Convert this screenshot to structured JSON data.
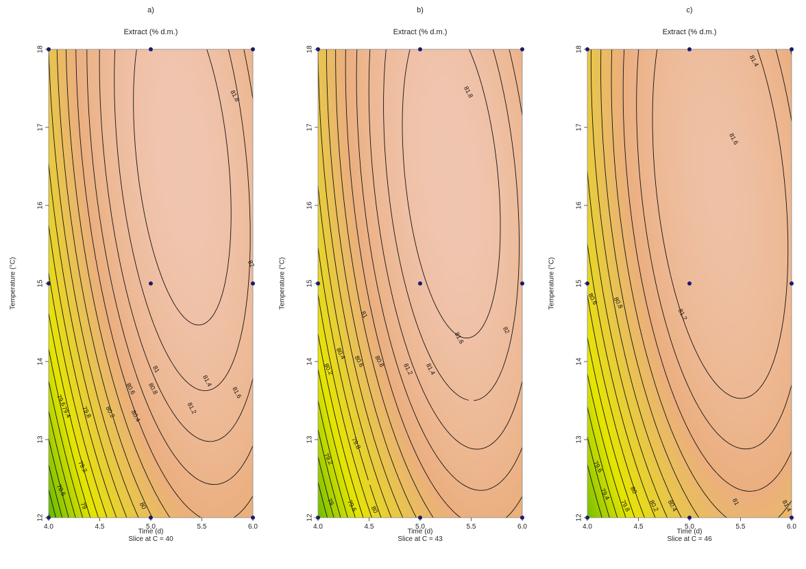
{
  "chart_data": [
    {
      "type": "heatmap",
      "panel_label": "a)",
      "title": "Extract (% d.m.)",
      "xlabel": "Time (d)",
      "ylabel": "Temperature (°C)",
      "slice_label": "Slice at C = 40",
      "xlim": [
        4.0,
        6.0
      ],
      "ylim": [
        12,
        18
      ],
      "x_ticks": [
        "4.0",
        "4.5",
        "5.0",
        "5.5",
        "6.0"
      ],
      "y_ticks": [
        "12",
        "13",
        "14",
        "15",
        "16",
        "17",
        "18"
      ],
      "surface": {
        "b0": 81.9,
        "b1": 0.9,
        "b2": 0.65,
        "b11": -1.05,
        "b22": -0.47,
        "b12": -0.47
      },
      "contour_levels": [
        78.4,
        78.6,
        78.8,
        79,
        79.2,
        79.4,
        79.6,
        79.8,
        80,
        80.2,
        80.4,
        80.6,
        80.8,
        81,
        81.2,
        81.4,
        81.6,
        81.8,
        82
      ],
      "contour_labels": [
        {
          "text": "78.6",
          "x": 4.12,
          "y": 12.35
        },
        {
          "text": "79",
          "x": 4.34,
          "y": 12.15
        },
        {
          "text": "79.2",
          "x": 4.33,
          "y": 12.65
        },
        {
          "text": "79.4",
          "x": 4.17,
          "y": 13.35
        },
        {
          "text": "79.6",
          "x": 4.12,
          "y": 13.5
        },
        {
          "text": "79.8",
          "x": 4.37,
          "y": 13.35
        },
        {
          "text": "80",
          "x": 4.92,
          "y": 12.15
        },
        {
          "text": "80.2",
          "x": 4.6,
          "y": 13.35
        },
        {
          "text": "80.4",
          "x": 4.85,
          "y": 13.3
        },
        {
          "text": "80.6",
          "x": 4.8,
          "y": 13.65
        },
        {
          "text": "80.8",
          "x": 5.02,
          "y": 13.65
        },
        {
          "text": "81",
          "x": 5.05,
          "y": 13.9
        },
        {
          "text": "81.2",
          "x": 5.4,
          "y": 13.4
        },
        {
          "text": "81.4",
          "x": 5.55,
          "y": 13.75
        },
        {
          "text": "81.6",
          "x": 5.84,
          "y": 13.6
        },
        {
          "text": "81.8",
          "x": 5.82,
          "y": 17.4
        },
        {
          "text": "82",
          "x": 5.98,
          "y": 15.25
        }
      ],
      "design_points": [
        {
          "x": 4,
          "y": 18
        },
        {
          "x": 5,
          "y": 18
        },
        {
          "x": 6,
          "y": 18
        },
        {
          "x": 4,
          "y": 15
        },
        {
          "x": 5,
          "y": 15
        },
        {
          "x": 6,
          "y": 15
        },
        {
          "x": 4,
          "y": 12
        },
        {
          "x": 5,
          "y": 12
        },
        {
          "x": 6,
          "y": 12
        }
      ]
    },
    {
      "type": "heatmap",
      "panel_label": "b)",
      "title": "Extract (% d.m.)",
      "xlabel": "Time (d)",
      "ylabel": "Temperature (°C)",
      "slice_label": "Slice at C = 43",
      "xlim": [
        4.0,
        6.0
      ],
      "ylim": [
        12,
        18
      ],
      "x_ticks": [
        "4.0",
        "4.5",
        "5.0",
        "5.5",
        "6.0"
      ],
      "y_ticks": [
        "12",
        "13",
        "14",
        "15",
        "16",
        "17",
        "18"
      ],
      "surface": {
        "b0": 81.95,
        "b1": 0.85,
        "b2": 0.6,
        "b11": -1.05,
        "b22": -0.5,
        "b12": -0.45
      },
      "contour_levels": [
        78.8,
        79,
        79.2,
        79.4,
        79.6,
        79.8,
        80,
        80.2,
        80.4,
        80.6,
        80.8,
        81,
        81.2,
        81.4,
        81.6,
        81.8,
        82
      ],
      "contour_labels": [
        {
          "text": "79",
          "x": 4.12,
          "y": 12.2
        },
        {
          "text": "79.2",
          "x": 4.1,
          "y": 12.75
        },
        {
          "text": "79.6",
          "x": 4.33,
          "y": 12.15
        },
        {
          "text": "79.8",
          "x": 4.37,
          "y": 12.95
        },
        {
          "text": "80",
          "x": 4.55,
          "y": 12.1
        },
        {
          "text": "80.2",
          "x": 4.1,
          "y": 13.9
        },
        {
          "text": "80.4",
          "x": 4.22,
          "y": 14.1
        },
        {
          "text": "80.6",
          "x": 4.4,
          "y": 14.0
        },
        {
          "text": "80.8",
          "x": 4.6,
          "y": 14.0
        },
        {
          "text": "81",
          "x": 4.45,
          "y": 14.6
        },
        {
          "text": "81.2",
          "x": 4.88,
          "y": 13.9
        },
        {
          "text": "81.4",
          "x": 5.1,
          "y": 13.9
        },
        {
          "text": "81.6",
          "x": 5.38,
          "y": 14.3
        },
        {
          "text": "81.8",
          "x": 5.47,
          "y": 17.45
        },
        {
          "text": "82",
          "x": 5.84,
          "y": 14.4
        }
      ],
      "design_points": [
        {
          "x": 4,
          "y": 18
        },
        {
          "x": 5,
          "y": 18
        },
        {
          "x": 6,
          "y": 18
        },
        {
          "x": 4,
          "y": 15
        },
        {
          "x": 5,
          "y": 15
        },
        {
          "x": 6,
          "y": 15
        },
        {
          "x": 4,
          "y": 12
        },
        {
          "x": 5,
          "y": 12
        },
        {
          "x": 6,
          "y": 12
        }
      ]
    },
    {
      "type": "heatmap",
      "panel_label": "c)",
      "title": "Extract (% d.m.)",
      "xlabel": "Time (d)",
      "ylabel": "Temperature (°C)",
      "slice_label": "Slice at C = 46",
      "xlim": [
        4.0,
        6.0
      ],
      "ylim": [
        12,
        18
      ],
      "x_ticks": [
        "4.0",
        "4.5",
        "5.0",
        "5.5",
        "6.0"
      ],
      "y_ticks": [
        "12",
        "13",
        "14",
        "15",
        "16",
        "17",
        "18"
      ],
      "surface": {
        "b0": 81.75,
        "b1": 0.75,
        "b2": 0.55,
        "b11": -0.95,
        "b22": -0.5,
        "b12": -0.42
      },
      "contour_levels": [
        79,
        79.2,
        79.4,
        79.6,
        79.8,
        80,
        80.2,
        80.4,
        80.6,
        80.8,
        81,
        81.2,
        81.4,
        81.6
      ],
      "contour_labels": [
        {
          "text": "79.4",
          "x": 4.17,
          "y": 12.3
        },
        {
          "text": "79.6",
          "x": 4.1,
          "y": 12.65
        },
        {
          "text": "79.8",
          "x": 4.37,
          "y": 12.15
        },
        {
          "text": "80",
          "x": 4.45,
          "y": 12.35
        },
        {
          "text": "80.2",
          "x": 4.65,
          "y": 12.15
        },
        {
          "text": "80.4",
          "x": 4.83,
          "y": 12.15
        },
        {
          "text": "80.6",
          "x": 4.05,
          "y": 14.8
        },
        {
          "text": "80.8",
          "x": 4.3,
          "y": 14.75
        },
        {
          "text": "81",
          "x": 5.45,
          "y": 12.2
        },
        {
          "text": "81.2",
          "x": 4.93,
          "y": 14.6
        },
        {
          "text": "81.4",
          "x": 5.95,
          "y": 12.15
        },
        {
          "text": "81.4",
          "x": 5.63,
          "y": 17.85
        },
        {
          "text": "81.6",
          "x": 5.43,
          "y": 16.85
        }
      ],
      "design_points": [
        {
          "x": 4,
          "y": 18
        },
        {
          "x": 5,
          "y": 18
        },
        {
          "x": 6,
          "y": 18
        },
        {
          "x": 4,
          "y": 15
        },
        {
          "x": 5,
          "y": 15
        },
        {
          "x": 6,
          "y": 15
        },
        {
          "x": 4,
          "y": 12
        },
        {
          "x": 5,
          "y": 12
        },
        {
          "x": 6,
          "y": 12
        }
      ]
    }
  ],
  "colors": {
    "low": "#3cab00",
    "mid": "#e6e600",
    "high": "#ebaf7f",
    "top": "#f0c5b0",
    "contour": "#111111",
    "points": "#1a1a70"
  }
}
